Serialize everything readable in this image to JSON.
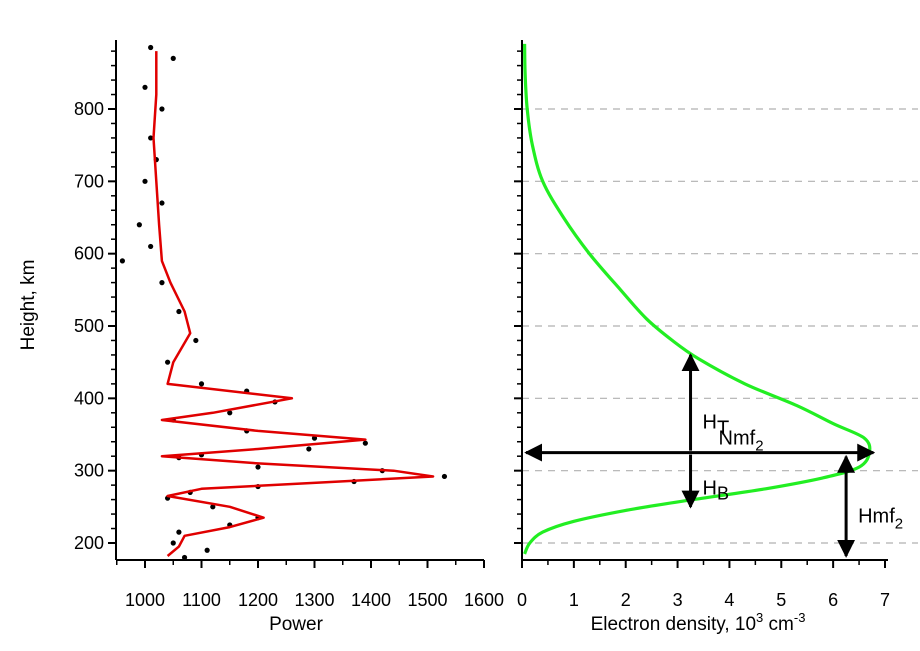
{
  "chart_data": [
    {
      "type": "scatter",
      "xlabel": "Power",
      "ylabel": "Height, km",
      "xlim": [
        950,
        1600
      ],
      "ylim": [
        180,
        890
      ],
      "x_ticks": [
        "1000",
        "1100",
        "1200",
        "1300",
        "1400",
        "1500",
        "1600"
      ],
      "y_ticks": [
        "200",
        "300",
        "400",
        "500",
        "600",
        "700",
        "800"
      ],
      "grid": false,
      "series": [
        {
          "kind": "points",
          "color": "#000000",
          "points": [
            [
              1010,
              885
            ],
            [
              1050,
              870
            ],
            [
              1000,
              830
            ],
            [
              1030,
              800
            ],
            [
              1010,
              760
            ],
            [
              1020,
              730
            ],
            [
              1000,
              700
            ],
            [
              1030,
              670
            ],
            [
              990,
              640
            ],
            [
              1010,
              610
            ],
            [
              960,
              590
            ],
            [
              1030,
              560
            ],
            [
              1060,
              520
            ],
            [
              1090,
              480
            ],
            [
              1040,
              450
            ],
            [
              1100,
              420
            ],
            [
              1180,
              410
            ],
            [
              1230,
              395
            ],
            [
              1150,
              380
            ],
            [
              1050,
              370
            ],
            [
              1180,
              355
            ],
            [
              1300,
              345
            ],
            [
              1390,
              338
            ],
            [
              1290,
              330
            ],
            [
              1100,
              322
            ],
            [
              1060,
              318
            ],
            [
              1200,
              305
            ],
            [
              1420,
              300
            ],
            [
              1530,
              292
            ],
            [
              1370,
              285
            ],
            [
              1200,
              278
            ],
            [
              1080,
              270
            ],
            [
              1040,
              262
            ],
            [
              1120,
              250
            ],
            [
              1200,
              235
            ],
            [
              1150,
              225
            ],
            [
              1060,
              215
            ],
            [
              1050,
              200
            ],
            [
              1110,
              190
            ],
            [
              1070,
              180
            ]
          ]
        },
        {
          "kind": "line",
          "color": "#e00000",
          "points": [
            [
              1020,
              880
            ],
            [
              1020,
              820
            ],
            [
              1015,
              760
            ],
            [
              1020,
              700
            ],
            [
              1025,
              640
            ],
            [
              1030,
              590
            ],
            [
              1045,
              560
            ],
            [
              1070,
              520
            ],
            [
              1080,
              490
            ],
            [
              1050,
              450
            ],
            [
              1040,
              420
            ],
            [
              1260,
              400
            ],
            [
              1120,
              380
            ],
            [
              1030,
              370
            ],
            [
              1200,
              355
            ],
            [
              1390,
              343
            ],
            [
              1200,
              330
            ],
            [
              1030,
              320
            ],
            [
              1200,
              310
            ],
            [
              1440,
              300
            ],
            [
              1510,
              292
            ],
            [
              1320,
              284
            ],
            [
              1100,
              275
            ],
            [
              1040,
              265
            ],
            [
              1150,
              250
            ],
            [
              1210,
              235
            ],
            [
              1150,
              222
            ],
            [
              1070,
              210
            ],
            [
              1060,
              195
            ],
            [
              1040,
              182
            ]
          ]
        }
      ]
    },
    {
      "type": "line",
      "xlabel_main": "Electron density, 10",
      "xlabel_sup": "3",
      "xlabel_unit": " cm",
      "xlabel_unit_sup": "-3",
      "xlim": [
        0,
        7
      ],
      "ylim": [
        180,
        890
      ],
      "x_ticks": [
        "0",
        "1",
        "2",
        "3",
        "4",
        "5",
        "6",
        "7"
      ],
      "grid": "horizontal-dashed",
      "series": [
        {
          "kind": "line",
          "color": "#22ee22",
          "points": [
            [
              0.05,
              890
            ],
            [
              0.06,
              850
            ],
            [
              0.1,
              800
            ],
            [
              0.2,
              750
            ],
            [
              0.4,
              700
            ],
            [
              0.8,
              650
            ],
            [
              1.3,
              600
            ],
            [
              1.9,
              550
            ],
            [
              2.4,
              510
            ],
            [
              2.9,
              480
            ],
            [
              3.4,
              455
            ],
            [
              4.3,
              420
            ],
            [
              5.3,
              390
            ],
            [
              6.0,
              365
            ],
            [
              6.6,
              345
            ],
            [
              6.7,
              325
            ],
            [
              6.5,
              305
            ],
            [
              5.8,
              290
            ],
            [
              4.7,
              275
            ],
            [
              3.3,
              260
            ],
            [
              2.0,
              245
            ],
            [
              1.0,
              230
            ],
            [
              0.4,
              215
            ],
            [
              0.15,
              200
            ],
            [
              0.05,
              185
            ]
          ]
        }
      ],
      "annotations": {
        "nmf2_height": 325,
        "nmf2_peak": 6.7,
        "ht_x": 3.25,
        "ht_top": 460,
        "hb_bottom": 250,
        "hmf2_x": 6.25,
        "hmf2_bottom": 182,
        "ht_main": "H",
        "ht_sub": "T",
        "hb_main": "H",
        "hb_sub": "B",
        "nmf2_main": "Nmf",
        "nmf2_sub": "2",
        "hmf2_main": "Hmf",
        "hmf2_sub": "2"
      }
    }
  ]
}
